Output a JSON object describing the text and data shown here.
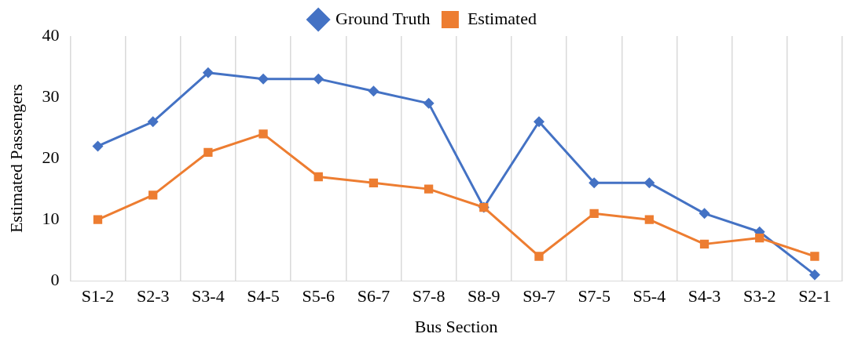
{
  "chart_data": {
    "type": "line",
    "xlabel": "Bus Section",
    "ylabel": "Estimated Passengers",
    "categories": [
      "S1-2",
      "S2-3",
      "S3-4",
      "S4-5",
      "S5-6",
      "S6-7",
      "S7-8",
      "S8-9",
      "S9-7",
      "S7-5",
      "S5-4",
      "S4-3",
      "S3-2",
      "S2-1"
    ],
    "series": [
      {
        "name": "Ground Truth",
        "color": "#4472c4",
        "marker": "diamond",
        "values": [
          22,
          26,
          34,
          33,
          33,
          31,
          29,
          12,
          26,
          16,
          16,
          11,
          8,
          1
        ]
      },
      {
        "name": "Estimated",
        "color": "#ed7d31",
        "marker": "square",
        "values": [
          10,
          14,
          21,
          24,
          17,
          16,
          15,
          12,
          4,
          11,
          10,
          6,
          7,
          4
        ]
      }
    ],
    "ylim": [
      0,
      40
    ],
    "yticks": [
      0,
      10,
      20,
      30,
      40
    ],
    "grid": "x",
    "legend": "top",
    "line_style": "solid"
  }
}
